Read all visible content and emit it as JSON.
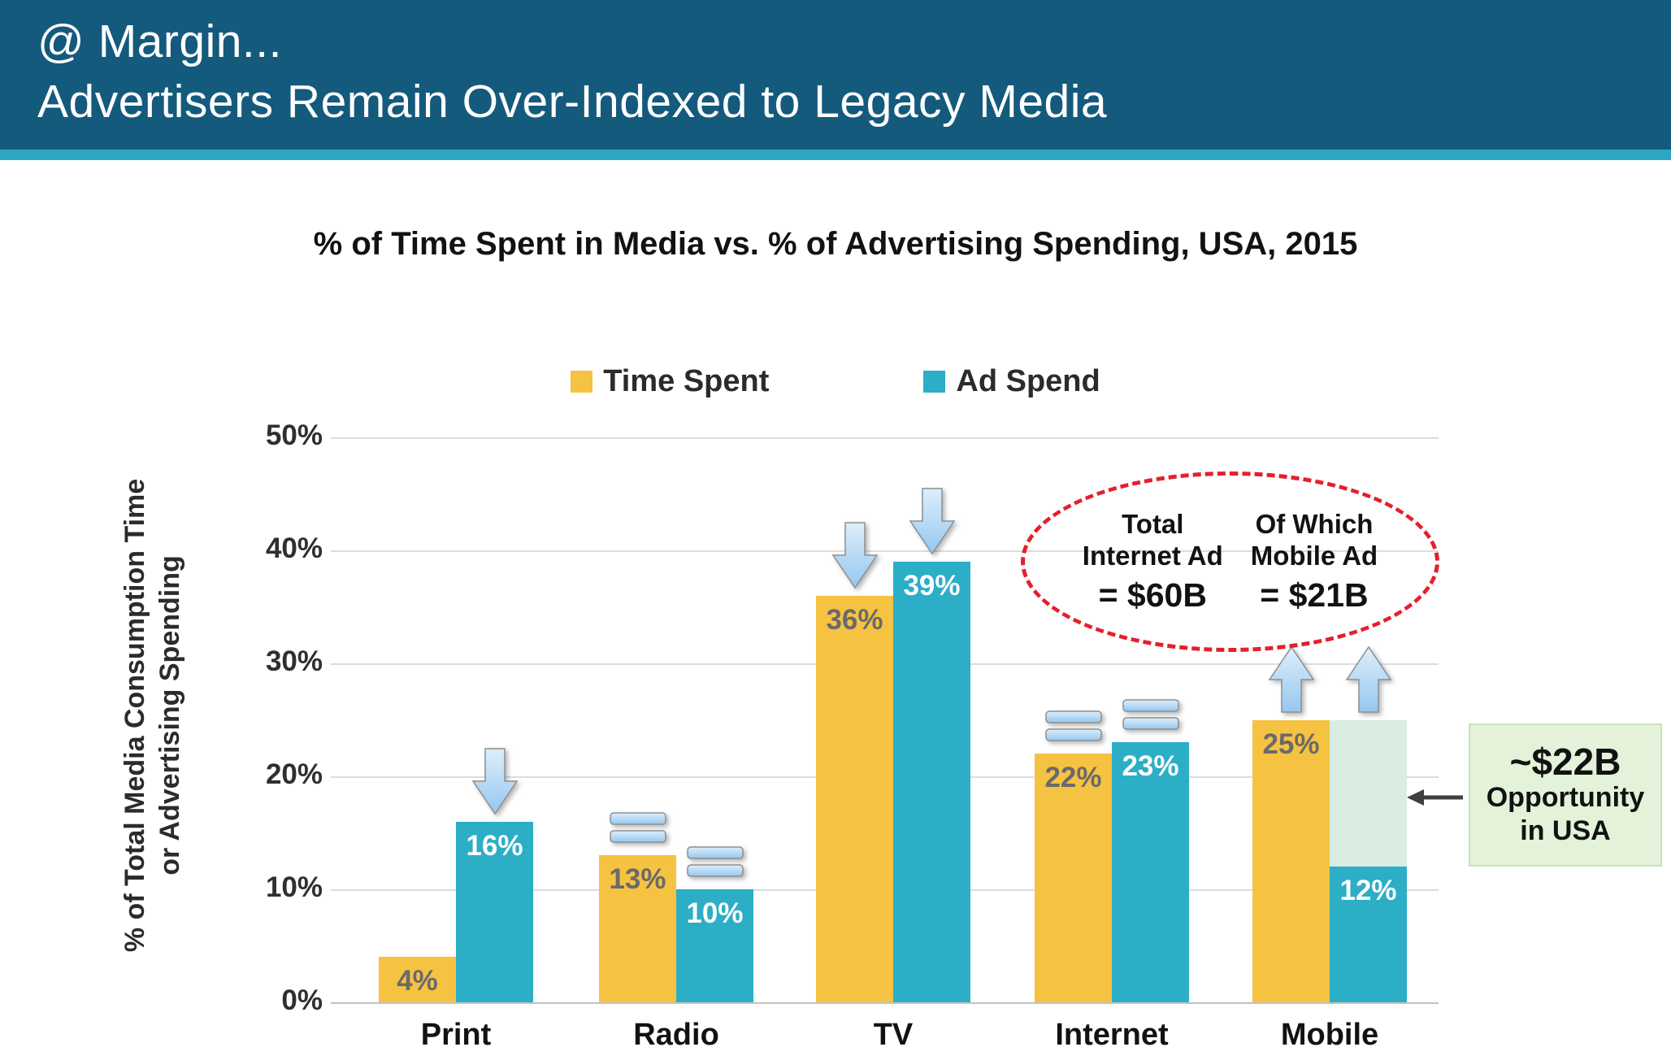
{
  "header": {
    "line1": "@ Margin...",
    "line2": "Advertisers Remain Over-Indexed to Legacy Media"
  },
  "chart_data": {
    "type": "bar",
    "title": "% of Time Spent in Media vs. % of Advertising Spending, USA, 2015",
    "categories": [
      "Print",
      "Radio",
      "TV",
      "Internet",
      "Mobile"
    ],
    "series": [
      {
        "name": "Time Spent",
        "color": "#f6c242",
        "label_color": "#6a6a6a",
        "values": [
          4,
          13,
          36,
          22,
          25
        ]
      },
      {
        "name": "Ad Spend",
        "color": "#2caec6",
        "label_color": "#ffffff",
        "values": [
          16,
          10,
          39,
          23,
          12
        ]
      }
    ],
    "value_suffix": "%",
    "ylabel": "% of Total Media Consumption Time or Advertising Spending",
    "ylabel_lines": [
      "% of Total Media Consumption Time",
      "or Advertising Spending"
    ],
    "ylim": [
      0,
      50
    ],
    "yticks": [
      "0%",
      "10%",
      "20%",
      "30%",
      "40%",
      "50%"
    ],
    "grid": true,
    "legend_position": "top",
    "markers": [
      [
        null,
        "down"
      ],
      [
        "equals",
        "equals"
      ],
      [
        "down",
        "down"
      ],
      [
        "equals",
        "equals"
      ],
      [
        "up",
        "up"
      ]
    ],
    "ghost": {
      "category": "Mobile",
      "series_index": 1,
      "top_value": 25,
      "color": "#d9ede3"
    },
    "annotations": {
      "internet_ad_callout": {
        "left_title_1": "Total",
        "left_title_2": "Internet Ad",
        "left_value": "= $60B",
        "right_title_1": "Of Which",
        "right_title_2": "Mobile Ad",
        "right_value": "= $21B"
      },
      "opportunity": {
        "amount": "~$22B",
        "line2": "Opportunity",
        "line3": "in USA"
      }
    }
  }
}
